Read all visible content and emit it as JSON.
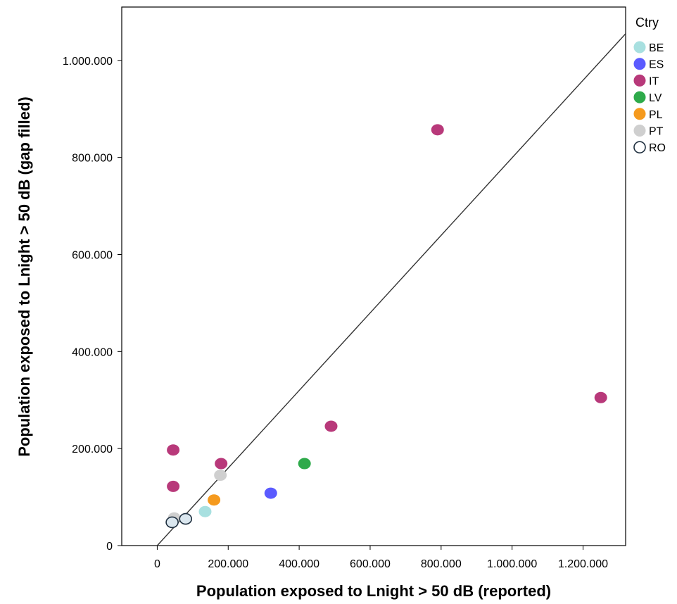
{
  "chart_data": {
    "type": "scatter",
    "xlabel": "Population exposed to Lnight > 50 dB (reported)",
    "ylabel": "Population exposed to Lnight > 50 dB (gap filled)",
    "xlim": [
      -100000,
      1320000
    ],
    "ylim": [
      0,
      1110000
    ],
    "x_ticks": [
      0,
      200000,
      400000,
      600000,
      800000,
      1000000,
      1200000
    ],
    "x_tick_labels": [
      "0",
      "200.000",
      "400.000",
      "600.000",
      "800.000",
      "1.000.000",
      "1.200.000"
    ],
    "y_ticks": [
      0,
      200000,
      400000,
      600000,
      800000,
      1000000
    ],
    "y_tick_labels": [
      "0",
      "200.000",
      "400.000",
      "600.000",
      "800.000",
      "1.000.000"
    ],
    "reference_line": {
      "x": [
        0,
        1320000
      ],
      "y": [
        0,
        1055000
      ]
    },
    "legend": {
      "title": "Ctry",
      "placement": "right"
    },
    "series": [
      {
        "name": "BE",
        "color": "#a8e0e0",
        "filled": true,
        "points": [
          [
            135000,
            70000
          ]
        ]
      },
      {
        "name": "ES",
        "color": "#5b5bff",
        "filled": true,
        "points": [
          [
            320000,
            108000
          ]
        ]
      },
      {
        "name": "IT",
        "color": "#b8397a",
        "filled": true,
        "points": [
          [
            790000,
            857000
          ],
          [
            1250000,
            305000
          ],
          [
            490000,
            246000
          ],
          [
            45000,
            197000
          ],
          [
            180000,
            169000
          ],
          [
            45000,
            122000
          ]
        ]
      },
      {
        "name": "LV",
        "color": "#2eaa4a",
        "filled": true,
        "points": [
          [
            415000,
            169000
          ]
        ]
      },
      {
        "name": "PL",
        "color": "#f59a1e",
        "filled": true,
        "points": [
          [
            160000,
            94000
          ]
        ]
      },
      {
        "name": "PT",
        "color": "#cfcfcf",
        "filled": true,
        "points": [
          [
            178000,
            145000
          ],
          [
            48000,
            57000
          ]
        ]
      },
      {
        "name": "RO",
        "color": "#dbe7ef",
        "stroke": "#1f2f3f",
        "filled": false,
        "points": [
          [
            80000,
            55000
          ],
          [
            42000,
            48000
          ]
        ]
      }
    ]
  }
}
